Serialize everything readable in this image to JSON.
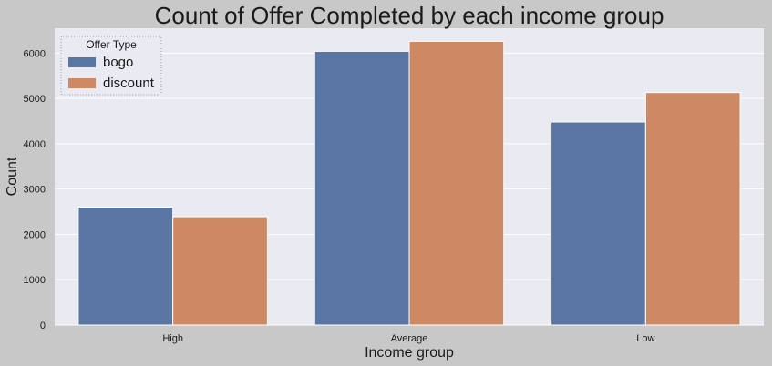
{
  "chart_data": {
    "type": "bar",
    "title": "Count of Offer Completed by each income group",
    "xlabel": "Income group",
    "ylabel": "Count",
    "categories": [
      "High",
      "Average",
      "Low"
    ],
    "series": [
      {
        "name": "bogo",
        "values": [
          2600,
          6040,
          4480
        ],
        "color": "#5875a4"
      },
      {
        "name": "discount",
        "values": [
          2390,
          6260,
          5130
        ],
        "color": "#cc8963"
      }
    ],
    "ylim": [
      0,
      6550
    ],
    "yticks": [
      0,
      1000,
      2000,
      3000,
      4000,
      5000,
      6000
    ],
    "grid": true,
    "legend": {
      "title": "Offer Type",
      "placement": "top-left"
    },
    "colors": {
      "plot_background": "#eaeaf2",
      "figure_background": "#c8c8c8",
      "grid": "#ffffff"
    }
  }
}
